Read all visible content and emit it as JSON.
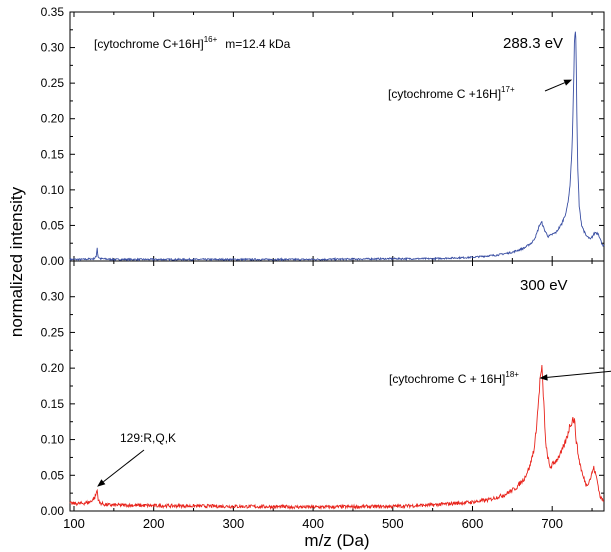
{
  "chart_data": [
    {
      "type": "line",
      "panel": "top",
      "xlabel": "m/z (Da)",
      "ylabel": "normalized intensity",
      "xlim": [
        95,
        765
      ],
      "ylim": [
        0,
        0.35
      ],
      "x_ticks": [
        100,
        200,
        300,
        400,
        500,
        600,
        700
      ],
      "y_ticks": [
        "0.00",
        "0.05",
        "0.10",
        "0.15",
        "0.20",
        "0.25",
        "0.30",
        "0.35"
      ],
      "color": "#3a4fa3",
      "series": [
        {
          "x": [
            95,
            110,
            125,
            128,
            129,
            130,
            133,
            150,
            200,
            300,
            400,
            500,
            550,
            600,
            630,
            650,
            665,
            675,
            680,
            684,
            687,
            690,
            695,
            705,
            712,
            718,
            722,
            725,
            727,
            728,
            729,
            730,
            731,
            732,
            734,
            737,
            742,
            748,
            754,
            758,
            762,
            765
          ],
          "y": [
            0.002,
            0.002,
            0.003,
            0.006,
            0.02,
            0.006,
            0.003,
            0.002,
            0.002,
            0.002,
            0.002,
            0.003,
            0.003,
            0.005,
            0.008,
            0.012,
            0.018,
            0.026,
            0.036,
            0.05,
            0.054,
            0.044,
            0.034,
            0.04,
            0.052,
            0.07,
            0.1,
            0.16,
            0.25,
            0.31,
            0.328,
            0.3,
            0.2,
            0.13,
            0.075,
            0.05,
            0.036,
            0.03,
            0.04,
            0.038,
            0.025,
            0.02
          ]
        }
      ],
      "annotations": {
        "energy": "288.3 eV",
        "info_main": "[cytochrome C+16H]",
        "info_sup": "16+",
        "info_mass": "m=12.4 kDa",
        "peak_main": "[cytochrome C +16H]",
        "peak_sup": "17+",
        "peak_arrow_target": {
          "x": 725,
          "y": 0.255
        }
      }
    },
    {
      "type": "line",
      "panel": "bottom",
      "xlabel": "m/z (Da)",
      "ylabel": "normalized intensity",
      "xlim": [
        95,
        765
      ],
      "ylim": [
        0,
        0.35
      ],
      "x_ticks": [
        100,
        200,
        300,
        400,
        500,
        600,
        700
      ],
      "y_ticks": [
        "0.00",
        "0.05",
        "0.10",
        "0.15",
        "0.20",
        "0.25",
        "0.30"
      ],
      "color": "#e8241c",
      "series": [
        {
          "x": [
            95,
            110,
            120,
            126,
            128,
            129,
            130,
            132,
            140,
            200,
            300,
            400,
            500,
            550,
            600,
            620,
            640,
            655,
            665,
            672,
            678,
            682,
            685,
            687,
            689,
            692,
            697,
            705,
            712,
            718,
            722,
            726,
            728,
            730,
            733,
            738,
            743,
            748,
            752,
            756,
            760,
            765
          ],
          "y": [
            0.01,
            0.01,
            0.012,
            0.018,
            0.024,
            0.03,
            0.018,
            0.011,
            0.008,
            0.007,
            0.006,
            0.005,
            0.006,
            0.008,
            0.012,
            0.015,
            0.022,
            0.032,
            0.045,
            0.062,
            0.09,
            0.14,
            0.185,
            0.198,
            0.16,
            0.09,
            0.06,
            0.07,
            0.082,
            0.1,
            0.118,
            0.128,
            0.125,
            0.1,
            0.075,
            0.05,
            0.035,
            0.045,
            0.06,
            0.045,
            0.02,
            0.012
          ]
        }
      ],
      "annotations": {
        "energy": "300 eV",
        "peak_main": "[cytochrome C + 16H]",
        "peak_sup": "18+",
        "peak_arrow_target": {
          "x": 684,
          "y": 0.186
        },
        "fragment_label": "129:R,Q,K",
        "fragment_arrow_target": {
          "x": 129,
          "y": 0.034
        }
      }
    }
  ]
}
